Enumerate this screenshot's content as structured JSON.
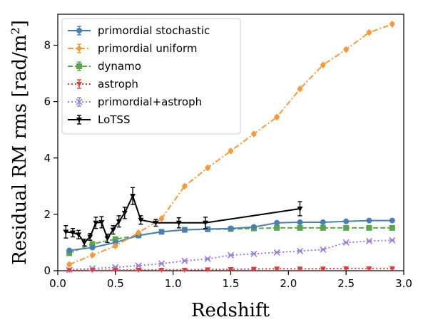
{
  "chart_data": {
    "type": "line",
    "xlabel": "Redshift",
    "ylabel": "Residual RM rms [rad/m",
    "ylabel_sup": "2",
    "ylabel_close": "]",
    "xlim": [
      0.0,
      3.0
    ],
    "ylim": [
      0,
      9.1
    ],
    "xticks": [
      {
        "value": 0.0,
        "label": "0.0"
      },
      {
        "value": 0.5,
        "label": "0.5"
      },
      {
        "value": 1.0,
        "label": "1.0"
      },
      {
        "value": 1.5,
        "label": "1.5"
      },
      {
        "value": 2.0,
        "label": "2.0"
      },
      {
        "value": 2.5,
        "label": "2.5"
      },
      {
        "value": 3.0,
        "label": "3.0"
      }
    ],
    "yticks": [
      {
        "value": 0,
        "label": "0"
      },
      {
        "value": 2,
        "label": "2"
      },
      {
        "value": 4,
        "label": "4"
      },
      {
        "value": 6,
        "label": "6"
      },
      {
        "value": 8,
        "label": "8"
      }
    ],
    "grid": false,
    "legend_position": "top-left",
    "series": [
      {
        "name": "primordial stochastic",
        "color": "#4a7fb5",
        "marker": "circle",
        "line_style": "solid",
        "x": [
          0.1,
          0.3,
          0.5,
          0.7,
          0.9,
          1.1,
          1.3,
          1.5,
          1.7,
          1.9,
          2.1,
          2.3,
          2.5,
          2.7,
          2.9
        ],
        "y": [
          0.72,
          0.82,
          1.0,
          1.25,
          1.38,
          1.45,
          1.48,
          1.5,
          1.55,
          1.7,
          1.72,
          1.72,
          1.75,
          1.78,
          1.78
        ],
        "err": [
          0.05,
          0.05,
          0.05,
          0.05,
          0.05,
          0.05,
          0.05,
          0.05,
          0.05,
          0.05,
          0.05,
          0.05,
          0.05,
          0.05,
          0.05
        ]
      },
      {
        "name": "primordial uniform",
        "color": "#f39a3c",
        "marker": "diamond",
        "line_style": "dashdot",
        "x": [
          0.1,
          0.3,
          0.5,
          0.7,
          0.9,
          1.1,
          1.3,
          1.5,
          1.7,
          1.9,
          2.1,
          2.3,
          2.5,
          2.7,
          2.9
        ],
        "y": [
          0.22,
          0.55,
          0.88,
          1.35,
          1.85,
          3.0,
          3.65,
          4.25,
          4.85,
          5.45,
          6.45,
          7.3,
          7.85,
          8.45,
          8.75
        ],
        "err": [
          0.05,
          0.05,
          0.05,
          0.05,
          0.05,
          0.05,
          0.05,
          0.05,
          0.05,
          0.05,
          0.05,
          0.05,
          0.05,
          0.05,
          0.05
        ]
      },
      {
        "name": "dynamo",
        "color": "#5aa64a",
        "marker": "square",
        "line_style": "dashed",
        "x": [
          0.1,
          0.3,
          0.5,
          0.7,
          0.9,
          1.1,
          1.3,
          1.5,
          1.7,
          1.9,
          2.1,
          2.3,
          2.5,
          2.7,
          2.9
        ],
        "y": [
          0.62,
          0.95,
          1.12,
          1.25,
          1.38,
          1.45,
          1.47,
          1.48,
          1.5,
          1.52,
          1.52,
          1.52,
          1.52,
          1.52,
          1.52
        ],
        "err": [
          0.05,
          0.05,
          0.05,
          0.05,
          0.05,
          0.05,
          0.05,
          0.05,
          0.05,
          0.05,
          0.05,
          0.05,
          0.05,
          0.05,
          0.05
        ]
      },
      {
        "name": "astroph",
        "color": "#d64040",
        "marker": "triangle-down",
        "line_style": "dotted",
        "x": [
          0.1,
          0.3,
          0.5,
          0.7,
          0.9,
          1.1,
          1.3,
          1.5,
          1.7,
          1.9,
          2.1,
          2.3,
          2.5,
          2.7,
          2.9
        ],
        "y": [
          0.02,
          0.02,
          0.02,
          0.03,
          0.03,
          0.03,
          0.04,
          0.05,
          0.06,
          0.07,
          0.07,
          0.07,
          0.08,
          0.08,
          0.08
        ],
        "err": [
          0.02,
          0.02,
          0.02,
          0.02,
          0.02,
          0.02,
          0.02,
          0.02,
          0.02,
          0.02,
          0.02,
          0.02,
          0.02,
          0.02,
          0.02
        ]
      },
      {
        "name": "primordial+astroph",
        "color": "#9b7fd4",
        "marker": "x",
        "line_style": "dotted",
        "x": [
          0.1,
          0.3,
          0.5,
          0.7,
          0.9,
          1.1,
          1.3,
          1.5,
          1.7,
          1.9,
          2.1,
          2.3,
          2.5,
          2.7,
          2.9
        ],
        "y": [
          0.03,
          0.08,
          0.12,
          0.18,
          0.25,
          0.35,
          0.42,
          0.55,
          0.6,
          0.65,
          0.7,
          0.75,
          1.0,
          1.05,
          1.08
        ],
        "err": [
          0.02,
          0.02,
          0.02,
          0.02,
          0.02,
          0.02,
          0.02,
          0.02,
          0.02,
          0.02,
          0.02,
          0.02,
          0.02,
          0.02,
          0.02
        ]
      },
      {
        "name": "LoTSS",
        "color": "#000000",
        "marker": "triangle-down",
        "line_style": "solid",
        "x": [
          0.07,
          0.13,
          0.18,
          0.23,
          0.28,
          0.33,
          0.38,
          0.43,
          0.48,
          0.53,
          0.58,
          0.65,
          0.72,
          0.85,
          1.05,
          1.28,
          2.1
        ],
        "y": [
          1.38,
          1.35,
          1.28,
          1.0,
          1.2,
          1.7,
          1.72,
          1.15,
          1.45,
          1.75,
          2.05,
          2.65,
          1.8,
          1.7,
          1.7,
          1.7,
          2.2
        ],
        "err": [
          0.22,
          0.15,
          0.15,
          0.12,
          0.12,
          0.2,
          0.2,
          0.15,
          0.15,
          0.2,
          0.2,
          0.3,
          0.15,
          0.12,
          0.18,
          0.2,
          0.25
        ]
      }
    ]
  }
}
